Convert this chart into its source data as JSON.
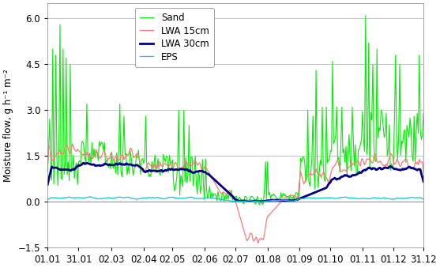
{
  "title": "",
  "ylabel": "Moisture flow, g h⁻¹ m⁻²",
  "xlabel": "",
  "ylim": [
    -1.5,
    6.5
  ],
  "yticks": [
    -1.5,
    0.0,
    1.5,
    3.0,
    4.5,
    6.0
  ],
  "xlim": [
    0,
    364
  ],
  "xtick_positions": [
    0,
    30,
    62,
    93,
    121,
    152,
    182,
    213,
    244,
    274,
    305,
    335,
    364
  ],
  "xtick_labels": [
    "01.01",
    "31.01",
    "02.03",
    "02.04",
    "02.05",
    "02.06",
    "02.07",
    "01.08",
    "01.09",
    "01.10",
    "01.11",
    "01.12",
    "31.12"
  ],
  "legend_labels": [
    "Sand",
    "LWA 15cm",
    "LWA 30cm",
    "EPS"
  ],
  "colors": {
    "Sand": "#00ee00",
    "LWA15": "#ff7777",
    "LWA30": "#00008b",
    "EPS": "#00ccdd"
  },
  "linewidths": {
    "Sand": 0.8,
    "LWA15": 0.9,
    "LWA30": 2.0,
    "EPS": 0.9
  },
  "grid_color": "#aaaaaa",
  "background_color": "#ffffff",
  "font_size": 8.5
}
